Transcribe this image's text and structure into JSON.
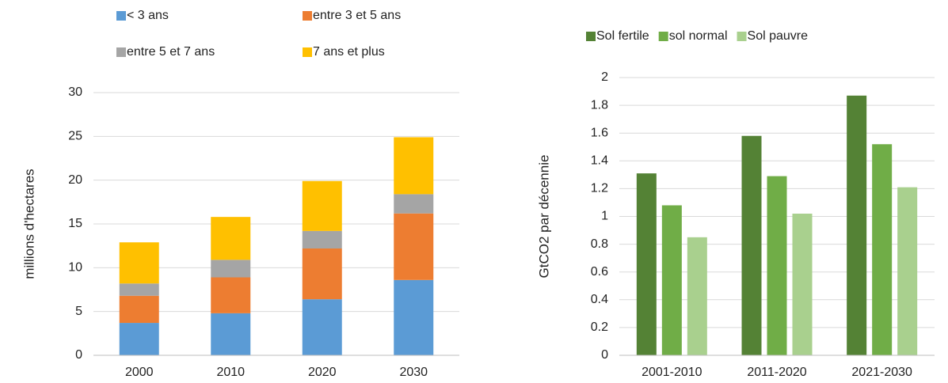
{
  "chart_data": [
    {
      "type": "stacked_bar",
      "ylabel": "millions d'hectares",
      "categories": [
        "2000",
        "2010",
        "2020",
        "2030"
      ],
      "series": [
        {
          "name": "< 3 ans",
          "color": "#5b9bd5",
          "values": [
            3.7,
            4.8,
            6.4,
            8.6
          ]
        },
        {
          "name": "entre 3 et 5 ans",
          "color": "#ed7d31",
          "values": [
            3.1,
            4.1,
            5.8,
            7.6
          ]
        },
        {
          "name": "entre 5 et 7 ans",
          "color": "#a5a5a5",
          "values": [
            1.4,
            2.0,
            2.0,
            2.2
          ]
        },
        {
          "name": "7 ans et plus",
          "color": "#ffc000",
          "values": [
            4.7,
            4.9,
            5.7,
            6.5
          ]
        }
      ],
      "ylim": [
        0,
        30
      ],
      "yticks": [
        0,
        5,
        10,
        15,
        20,
        25,
        30
      ],
      "grid": true,
      "legend": "top"
    },
    {
      "type": "grouped_bar",
      "ylabel": "GtCO2 par décennie",
      "categories": [
        "2001-2010",
        "2011-2020",
        "2021-2030"
      ],
      "series": [
        {
          "name": "Sol fertile",
          "color": "#548235",
          "values": [
            1.31,
            1.58,
            1.87
          ]
        },
        {
          "name": "sol normal",
          "color": "#70ad47",
          "values": [
            1.08,
            1.29,
            1.52
          ]
        },
        {
          "name": "Sol pauvre",
          "color": "#a9d08e",
          "values": [
            0.85,
            1.02,
            1.21
          ]
        }
      ],
      "ylim": [
        0,
        2
      ],
      "yticks": [
        0,
        0.2,
        0.4,
        0.6,
        0.8,
        1,
        1.2,
        1.4,
        1.6,
        1.8,
        2
      ],
      "grid": true,
      "legend": "top"
    }
  ]
}
